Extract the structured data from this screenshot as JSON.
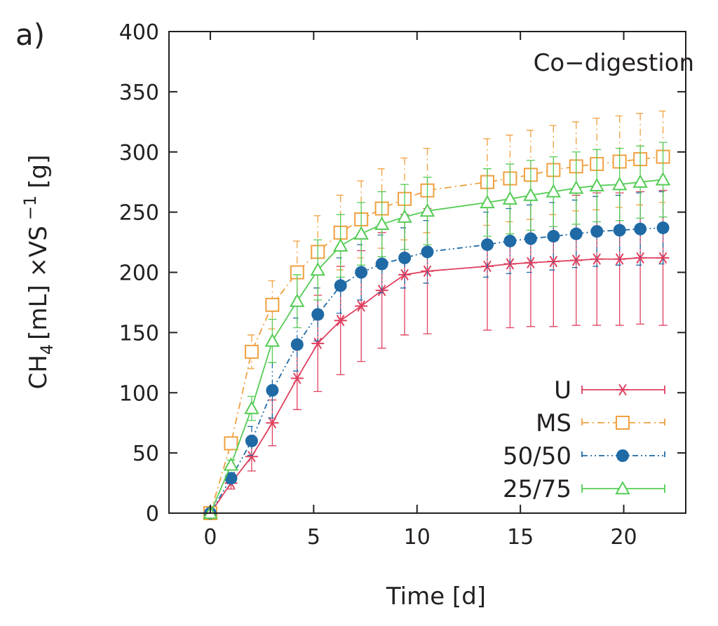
{
  "chart_data": {
    "type": "line",
    "panel_label": "a)",
    "title": "Co−digestion",
    "xlabel": "Time [d]",
    "ylabel": {
      "prefix": "CH",
      "sub": "4",
      "unit": "[mL] ×VS",
      "sup": "−1",
      "tail": "[g]"
    },
    "xlim": [
      -2,
      23
    ],
    "ylim": [
      0,
      400
    ],
    "xticks": [
      "0",
      "5",
      "10",
      "15",
      "20"
    ],
    "yticks": [
      "0",
      "50",
      "100",
      "150",
      "200",
      "250",
      "300",
      "350",
      "400"
    ],
    "legend_position": "bottom-right",
    "series": [
      {
        "name": "U",
        "color": "#e0405f",
        "marker": "star",
        "dash": "solid",
        "x": [
          0,
          1,
          2,
          3,
          4.2,
          5.2,
          6.3,
          7.3,
          8.3,
          9.4,
          10.5,
          13.4,
          14.5,
          15.5,
          16.6,
          17.7,
          18.7,
          19.8,
          20.8,
          21.9
        ],
        "y": [
          0,
          25,
          47,
          75,
          112,
          141,
          160,
          172,
          185,
          198,
          201,
          205,
          207,
          208,
          209,
          210,
          211,
          211,
          212,
          212
        ],
        "err": [
          0,
          5,
          12,
          19,
          26,
          40,
          45,
          46,
          48,
          50,
          52,
          53,
          53,
          53,
          54,
          54,
          55,
          55,
          55,
          56
        ]
      },
      {
        "name": "MS",
        "color": "#f0a040",
        "marker": "square",
        "dash": "dashdot",
        "x": [
          0,
          1,
          2,
          3,
          4.2,
          5.2,
          6.3,
          7.3,
          8.3,
          9.4,
          10.5,
          13.4,
          14.5,
          15.5,
          16.6,
          17.7,
          18.7,
          19.8,
          20.8,
          21.9
        ],
        "y": [
          0,
          58,
          134,
          173,
          200,
          217,
          233,
          244,
          253,
          261,
          268,
          275,
          278,
          281,
          285,
          288,
          290,
          292,
          294,
          296
        ],
        "err": [
          0,
          5,
          14,
          20,
          26,
          30,
          31,
          32,
          33,
          34,
          35,
          36,
          36,
          37,
          37,
          37,
          38,
          38,
          38,
          38
        ]
      },
      {
        "name": "50/50",
        "color": "#1f6aa5",
        "marker": "circle",
        "dash": "dashdotdot",
        "x": [
          0,
          1,
          2,
          3,
          4.2,
          5.2,
          6.3,
          7.3,
          8.3,
          9.4,
          10.5,
          13.4,
          14.5,
          15.5,
          16.6,
          17.7,
          18.7,
          19.8,
          20.8,
          21.9
        ],
        "y": [
          0,
          29,
          60,
          102,
          140,
          165,
          189,
          200,
          207,
          212,
          217,
          223,
          226,
          228,
          230,
          232,
          234,
          235,
          236,
          237
        ],
        "err": [
          0,
          4,
          12,
          23,
          22,
          22,
          23,
          23,
          24,
          25,
          26,
          27,
          27,
          28,
          28,
          28,
          29,
          29,
          30,
          30
        ]
      },
      {
        "name": "25/75",
        "color": "#55cc55",
        "marker": "triangle",
        "dash": "solid",
        "x": [
          0,
          1,
          2,
          3,
          4.2,
          5.2,
          6.3,
          7.3,
          8.3,
          9.4,
          10.5,
          13.4,
          14.5,
          15.5,
          16.6,
          17.7,
          18.7,
          19.8,
          20.8,
          21.9
        ],
        "y": [
          0,
          40,
          87,
          143,
          176,
          202,
          222,
          232,
          240,
          246,
          251,
          258,
          261,
          264,
          267,
          270,
          272,
          273,
          275,
          277
        ],
        "err": [
          0,
          4,
          10,
          18,
          22,
          25,
          26,
          26,
          27,
          27,
          28,
          28,
          29,
          29,
          29,
          30,
          30,
          30,
          30,
          31
        ]
      }
    ]
  }
}
